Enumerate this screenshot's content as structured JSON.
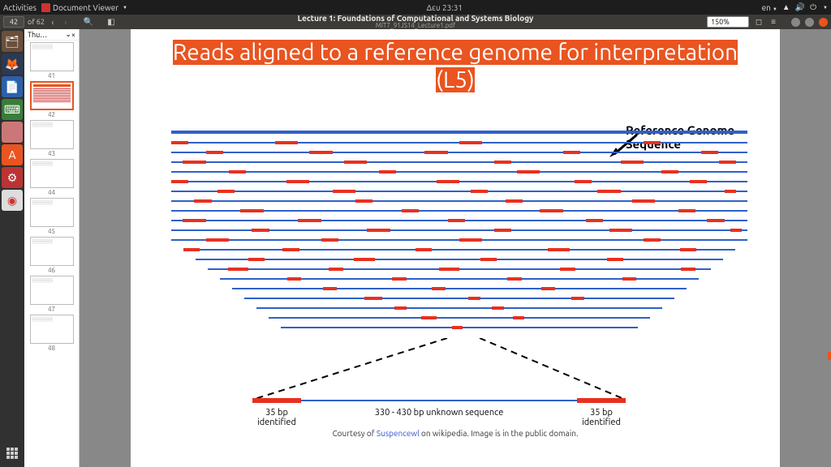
{
  "topbar": {
    "activities": "Activities",
    "app_name": "Document Viewer",
    "clock": "Δευ 23:31",
    "lang": "en"
  },
  "toolbar": {
    "page_current": "42",
    "page_of": "of 62",
    "title": "Lecture 1: Foundations of Computational and Systems Biology",
    "subtitle": "MIT7_91JS14_Lecture1.pdf",
    "zoom": "150%"
  },
  "thumbs": {
    "header": "Thu…",
    "pages": [
      41,
      42,
      43,
      44,
      45,
      46,
      47,
      48
    ],
    "selected": 42
  },
  "slide": {
    "title_l1": "Reads aligned to a reference genome for interpretation",
    "title_l2": "(L5)",
    "ref_label": "Reference Genome Sequence",
    "bottom": {
      "left": "35 bp identified",
      "mid": "330 - 430 bp unknown sequence",
      "right": "35 bp identified"
    },
    "credit_pre": "Courtesy of ",
    "credit_link": "Suspencewl",
    "credit_post": " on wikipedia. Image is in the public domain."
  },
  "colors": {
    "accent": "#e95420",
    "read_line": "#3060c8",
    "read_end": "#e83020"
  },
  "diagram": {
    "row_tops": [
      14,
      26,
      38,
      50,
      62,
      74,
      86,
      98,
      110,
      122,
      134,
      146,
      158,
      170,
      182,
      194,
      206,
      218,
      230,
      242
    ],
    "segments": [
      [
        [
          0,
          3
        ],
        [
          18,
          4
        ],
        [
          50,
          4
        ],
        [
          82,
          3
        ]
      ],
      [
        [
          6,
          3
        ],
        [
          24,
          4
        ],
        [
          44,
          4
        ],
        [
          68,
          3
        ],
        [
          92,
          3
        ]
      ],
      [
        [
          2,
          4
        ],
        [
          30,
          4
        ],
        [
          56,
          3
        ],
        [
          78,
          4
        ],
        [
          95,
          3
        ]
      ],
      [
        [
          10,
          3
        ],
        [
          36,
          3
        ],
        [
          60,
          4
        ],
        [
          85,
          3
        ]
      ],
      [
        [
          0,
          3
        ],
        [
          20,
          4
        ],
        [
          46,
          4
        ],
        [
          70,
          3
        ],
        [
          90,
          3
        ]
      ],
      [
        [
          8,
          3
        ],
        [
          28,
          4
        ],
        [
          52,
          3
        ],
        [
          74,
          4
        ],
        [
          96,
          2
        ]
      ],
      [
        [
          4,
          3
        ],
        [
          32,
          3
        ],
        [
          58,
          3
        ],
        [
          80,
          4
        ]
      ],
      [
        [
          12,
          4
        ],
        [
          40,
          3
        ],
        [
          64,
          4
        ],
        [
          88,
          3
        ]
      ],
      [
        [
          2,
          4
        ],
        [
          22,
          4
        ],
        [
          48,
          3
        ],
        [
          72,
          3
        ],
        [
          93,
          3
        ]
      ],
      [
        [
          14,
          3
        ],
        [
          34,
          4
        ],
        [
          56,
          3
        ],
        [
          76,
          4
        ],
        [
          97,
          2
        ]
      ],
      [
        [
          6,
          4
        ],
        [
          26,
          3
        ],
        [
          50,
          4
        ],
        [
          82,
          3
        ]
      ],
      [
        [
          0,
          3
        ],
        [
          18,
          3
        ],
        [
          42,
          3
        ],
        [
          66,
          4
        ],
        [
          90,
          3
        ]
      ],
      [
        [
          10,
          3
        ],
        [
          30,
          4
        ],
        [
          54,
          3
        ],
        [
          78,
          3
        ]
      ],
      [
        [
          4,
          4
        ],
        [
          24,
          3
        ],
        [
          46,
          4
        ],
        [
          70,
          3
        ],
        [
          94,
          3
        ]
      ],
      [
        [
          14,
          3
        ],
        [
          36,
          3
        ],
        [
          60,
          3
        ],
        [
          84,
          3
        ]
      ],
      [
        [
          20,
          3
        ],
        [
          44,
          3
        ],
        [
          68,
          3
        ]
      ],
      [
        [
          28,
          4
        ],
        [
          52,
          3
        ],
        [
          76,
          3
        ]
      ],
      [
        [
          34,
          3
        ],
        [
          58,
          3
        ]
      ],
      [
        [
          40,
          4
        ],
        [
          64,
          3
        ]
      ],
      [
        [
          48,
          3
        ]
      ]
    ]
  }
}
